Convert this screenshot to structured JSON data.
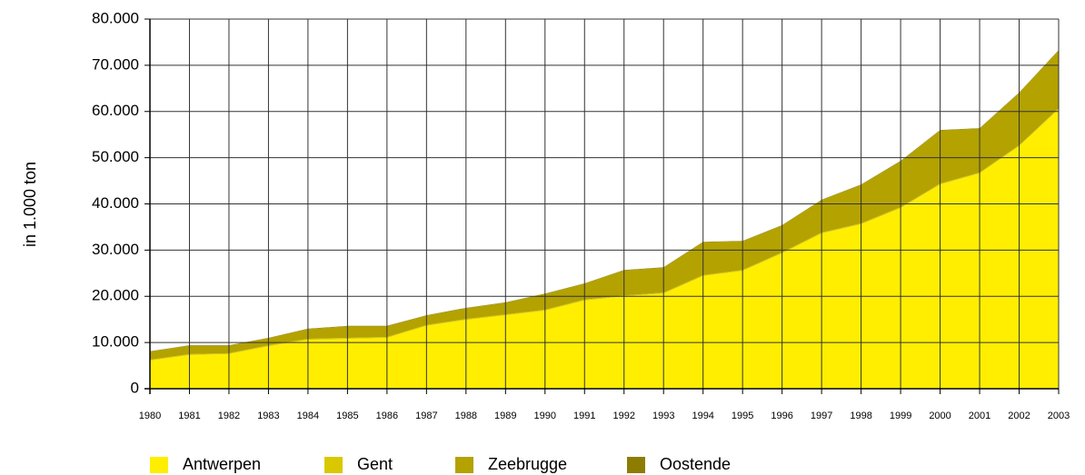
{
  "chart_data": {
    "type": "stacked_area",
    "y_label": "in 1.000 ton",
    "categories": [
      "1980",
      "1981",
      "1982",
      "1983",
      "1984",
      "1985",
      "1986",
      "1987",
      "1988",
      "1989",
      "1990",
      "1991",
      "1992",
      "1993",
      "1994",
      "1995",
      "1996",
      "1997",
      "1998",
      "1999",
      "2000",
      "2001",
      "2002",
      "2003"
    ],
    "series": [
      {
        "name": "Antwerpen",
        "color": "#ffee00",
        "values": [
          6100,
          7300,
          7500,
          9200,
          10600,
          10800,
          11000,
          13600,
          14900,
          15900,
          16900,
          19100,
          20000,
          20600,
          24400,
          25500,
          29300,
          33600,
          35600,
          39100,
          44200,
          46600,
          52500,
          60500
        ]
      },
      {
        "name": "Gent",
        "color": "#d9c800",
        "values": [
          200,
          200,
          200,
          200,
          200,
          200,
          200,
          200,
          200,
          200,
          200,
          200,
          200,
          200,
          200,
          200,
          200,
          200,
          200,
          200,
          200,
          200,
          200,
          200
        ]
      },
      {
        "name": "Zeebrugge",
        "color": "#b3a200",
        "values": [
          1700,
          1800,
          1600,
          1500,
          2100,
          2500,
          2300,
          2000,
          2300,
          2500,
          3400,
          3400,
          5400,
          5400,
          7100,
          6200,
          5800,
          7000,
          8300,
          9900,
          11500,
          9500,
          11300,
          12500
        ]
      },
      {
        "name": "Oostende",
        "color": "#8c7d00",
        "values": [
          100,
          100,
          100,
          100,
          100,
          100,
          100,
          100,
          100,
          100,
          100,
          100,
          100,
          100,
          100,
          100,
          100,
          100,
          100,
          100,
          100,
          100,
          100,
          100
        ]
      }
    ],
    "ylim": [
      0,
      80000
    ],
    "yticks": [
      0,
      {
        "value": 10000,
        "label": "10.000"
      },
      {
        "value": 20000,
        "label": "20.000"
      },
      {
        "value": 30000,
        "label": "30.000"
      },
      {
        "value": 40000,
        "label": "40.000"
      },
      {
        "value": 50000,
        "label": "50.000"
      },
      {
        "value": 60000,
        "label": "60.000"
      },
      {
        "value": 70000,
        "label": "70.000"
      },
      {
        "value": 80000,
        "label": "80.000"
      }
    ],
    "grid": true,
    "legend": "bottom"
  }
}
